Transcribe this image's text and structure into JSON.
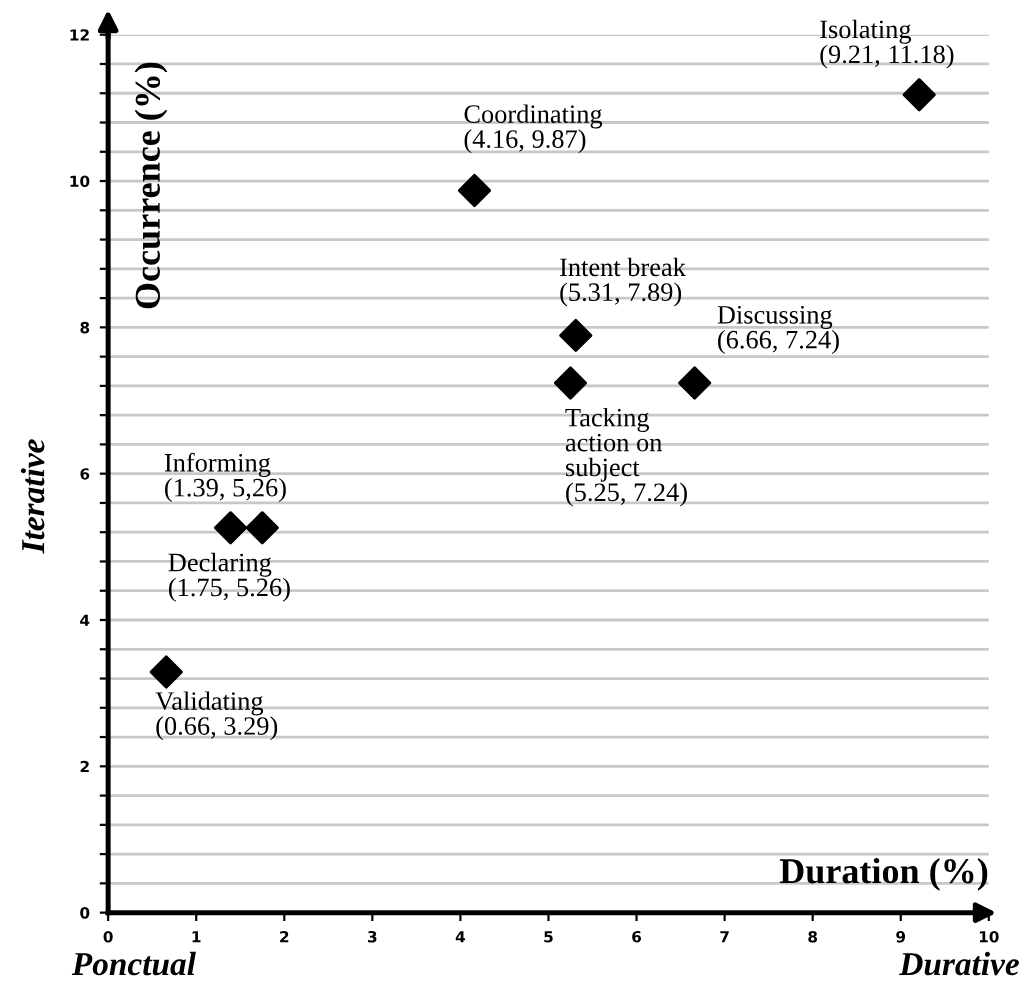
{
  "chart_data": {
    "type": "scatter",
    "xlabel": "Duration (%)",
    "ylabel": "Occurrence (%)",
    "x": [
      0.66,
      1.39,
      1.75,
      4.16,
      5.25,
      5.31,
      6.66,
      9.21
    ],
    "series": [
      {
        "color": "#000000",
        "values": [
          3.29,
          5.26,
          5.26,
          9.87,
          7.24,
          7.89,
          7.24,
          11.18
        ]
      }
    ],
    "marker": "diamond",
    "xlim": [
      0,
      10
    ],
    "ylim": [
      0,
      12
    ],
    "xticks": [
      0,
      1,
      2,
      3,
      4,
      5,
      6,
      7,
      8,
      9,
      10
    ],
    "yticks": [
      0,
      {
        "value": 0.4,
        "label": null
      },
      {
        "value": 0.8,
        "label": null
      },
      {
        "value": 1.2,
        "label": null
      },
      {
        "value": 1.6,
        "label": null
      },
      2,
      {
        "value": 2.4,
        "label": null
      },
      {
        "value": 2.8,
        "label": null
      },
      {
        "value": 3.2,
        "label": null
      },
      {
        "value": 3.6,
        "label": null
      },
      4,
      {
        "value": 4.4,
        "label": null
      },
      {
        "value": 4.8,
        "label": null
      },
      {
        "value": 5.2,
        "label": null
      },
      {
        "value": 5.6,
        "label": null
      },
      6,
      {
        "value": 6.4,
        "label": null
      },
      {
        "value": 6.8,
        "label": null
      },
      {
        "value": 7.2,
        "label": null
      },
      {
        "value": 7.6,
        "label": null
      },
      8,
      {
        "value": 8.4,
        "label": null
      },
      {
        "value": 8.8,
        "label": null
      },
      {
        "value": 9.2,
        "label": null
      },
      {
        "value": 9.6,
        "label": null
      },
      10,
      {
        "value": 10.4,
        "label": null
      },
      {
        "value": 10.8,
        "label": null
      },
      {
        "value": 11.2,
        "label": null
      },
      {
        "value": 11.6,
        "label": null
      },
      12
    ],
    "grid": "y",
    "annotations": [
      {
        "text": "Validating\n(0.66, 3.29)",
        "x": 0.66,
        "y": 3.29
      },
      {
        "text": "Informing\n(1.39, 5,26)",
        "x": 1.39,
        "y": 5.26
      },
      {
        "text": "Declaring\n(1.75, 5.26)",
        "x": 1.75,
        "y": 5.26
      },
      {
        "text": "Coordinating\n(4.16, 9.87)",
        "x": 4.16,
        "y": 9.87
      },
      {
        "text": "Tacking\naction on\nsubject\n(5.25, 7.24)",
        "x": 5.25,
        "y": 7.24
      },
      {
        "text": "Intent break\n(5.31, 7.89)",
        "x": 5.31,
        "y": 7.89
      },
      {
        "text": "Discussing\n(6.66, 7.24)",
        "x": 6.66,
        "y": 7.24
      },
      {
        "text": "Isolating\n(9.21, 11.18)",
        "x": 9.21,
        "y": 11.18
      },
      "Iterative",
      "Ponctual",
      "Durative"
    ]
  }
}
